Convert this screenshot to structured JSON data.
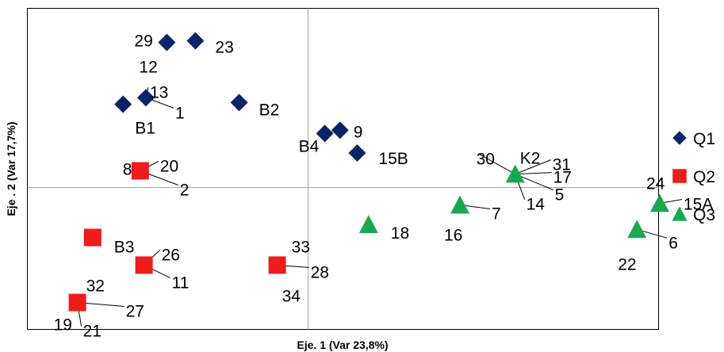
{
  "chart_data": {
    "type": "scatter",
    "xlabel": "Eje. 1 (Var 23,8%)",
    "ylabel": "Eje . 2 (Var 17,7%)",
    "legend_position": "right",
    "grid": false,
    "series": [
      {
        "name": "Q1",
        "marker": "diamond",
        "color": "#0b2466",
        "points": [
          {
            "x": -0.74,
            "y": 0.89,
            "labels": [
              "29",
              "12"
            ]
          },
          {
            "x": -0.59,
            "y": 0.9,
            "labels": [
              "23"
            ]
          },
          {
            "x": -0.85,
            "y": 0.55,
            "labels": [
              "13",
              "1"
            ]
          },
          {
            "x": -0.97,
            "y": 0.51,
            "labels": [
              "B1"
            ]
          },
          {
            "x": -0.36,
            "y": 0.52,
            "labels": [
              "B2"
            ]
          },
          {
            "x": 0.17,
            "y": 0.35,
            "labels": [
              "9"
            ]
          },
          {
            "x": 0.09,
            "y": 0.33,
            "labels": [
              "B4"
            ]
          },
          {
            "x": 0.26,
            "y": 0.21,
            "labels": [
              "15B"
            ]
          }
        ]
      },
      {
        "name": "Q2",
        "marker": "square",
        "color": "#ee1c1c",
        "points": [
          {
            "x": -0.88,
            "y": 0.1,
            "labels": [
              "8",
              "20",
              "2"
            ]
          },
          {
            "x": -1.13,
            "y": -0.31,
            "labels": [
              "B3"
            ]
          },
          {
            "x": -0.86,
            "y": -0.48,
            "labels": [
              "26",
              "11"
            ]
          },
          {
            "x": -0.16,
            "y": -0.48,
            "labels": [
              "33",
              "28",
              "34"
            ]
          },
          {
            "x": -1.21,
            "y": -0.71,
            "labels": [
              "32",
              "27",
              "19",
              "21"
            ]
          }
        ]
      },
      {
        "name": "Q3",
        "marker": "triangle",
        "color": "#1aa84e",
        "points": [
          {
            "x": 1.09,
            "y": 0.08,
            "labels": [
              "K2",
              "31",
              "30",
              "17",
              "5",
              "14"
            ]
          },
          {
            "x": 0.8,
            "y": -0.11,
            "labels": [
              "7",
              "16"
            ]
          },
          {
            "x": 0.32,
            "y": -0.23,
            "labels": [
              "18"
            ]
          },
          {
            "x": 1.85,
            "y": -0.1,
            "labels": [
              "24",
              "15A"
            ]
          },
          {
            "x": 1.73,
            "y": -0.26,
            "labels": [
              "6",
              "22"
            ]
          }
        ]
      }
    ]
  }
}
